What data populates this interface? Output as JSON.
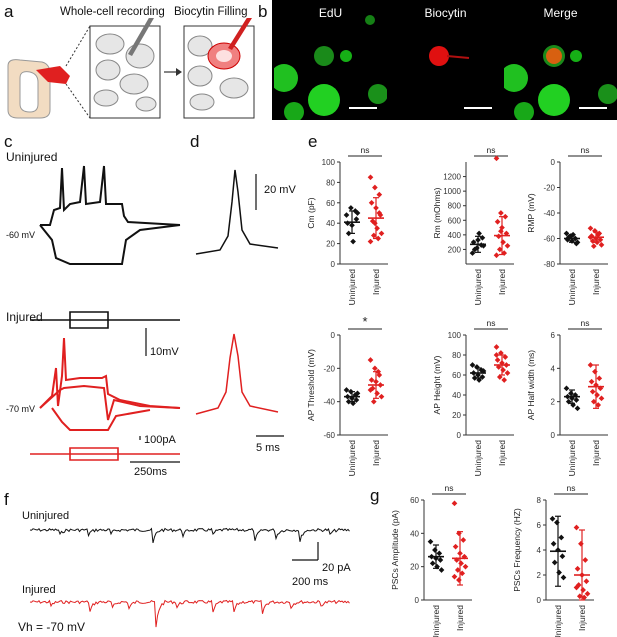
{
  "panels": {
    "a": {
      "label": "a",
      "step1": "Whole-cell recording",
      "step2": "Biocytin Filling"
    },
    "b": {
      "label": "b",
      "channels": [
        "EdU",
        "Biocytin",
        "Merge"
      ],
      "colors": {
        "edu": "#18c818",
        "biocytin": "#e01010",
        "merge_core": "#d86010"
      }
    },
    "c": {
      "label": "c",
      "uninjured_title": "Uninjured",
      "uninjured_rmp": "-60 mV",
      "injured_title": "Injured",
      "injured_rmp": "-70 mV",
      "scale_voltage": "10mV",
      "scale_current": "100pA",
      "scale_time": "250ms"
    },
    "d": {
      "label": "d",
      "scale_voltage": "20 mV",
      "scale_time": "5 ms"
    },
    "e": {
      "label": "e",
      "groups": [
        "Uninjured",
        "Injured"
      ]
    },
    "f": {
      "label": "f",
      "uninjured_title": "Uninjured",
      "injured_title": "Injured",
      "holding": "Vh = -70 mV",
      "scale_current": "20 pA",
      "scale_time": "200 ms"
    },
    "g": {
      "label": "g"
    }
  },
  "colors": {
    "uninjured": "#111111",
    "injured": "#e02020"
  },
  "chart_data": [
    {
      "type": "scatter",
      "panel": "e",
      "ylabel": "Cm (pF)",
      "ylim": [
        0,
        100
      ],
      "yticks": [
        0,
        20,
        40,
        60,
        80,
        100
      ],
      "categories": [
        "Uninjured",
        "Injured"
      ],
      "significance": "ns",
      "series": [
        {
          "name": "Uninjured",
          "values": [
            48,
            55,
            52,
            40,
            38,
            44,
            30,
            22,
            50
          ],
          "mean": 41,
          "sd": 11
        },
        {
          "name": "Injured",
          "values": [
            85,
            75,
            68,
            60,
            55,
            48,
            42,
            35,
            30,
            28,
            25,
            22,
            40,
            50
          ],
          "mean": 45,
          "sd": 20
        }
      ]
    },
    {
      "type": "scatter",
      "panel": "e",
      "ylabel": "Rm (mOhms)",
      "ylim": [
        0,
        1400
      ],
      "yticks": [
        200,
        400,
        600,
        800,
        1000,
        1200
      ],
      "categories": [
        "Uninjured",
        "Injured"
      ],
      "significance": "ns",
      "series": [
        {
          "name": "Uninjured",
          "values": [
            150,
            220,
            260,
            300,
            330,
            360,
            200,
            420,
            250
          ],
          "mean": 270,
          "sd": 110
        },
        {
          "name": "Injured",
          "values": [
            1450,
            700,
            650,
            580,
            500,
            420,
            380,
            300,
            250,
            200,
            150,
            120,
            450
          ],
          "mean": 390,
          "sd": 260
        }
      ]
    },
    {
      "type": "scatter",
      "panel": "e",
      "ylabel": "RMP (mV)",
      "ylim": [
        -80,
        0
      ],
      "yticks": [
        -80,
        -60,
        -40,
        -20,
        0
      ],
      "categories": [
        "Uninjured",
        "Injured"
      ],
      "significance": "ns",
      "series": [
        {
          "name": "Uninjured",
          "values": [
            -56,
            -58,
            -60,
            -61,
            -62,
            -64,
            -59,
            -57,
            -63
          ],
          "mean": -60,
          "sd": 3
        },
        {
          "name": "Injured",
          "values": [
            -52,
            -54,
            -56,
            -58,
            -60,
            -61,
            -62,
            -63,
            -65,
            -66,
            -57,
            -59
          ],
          "mean": -59,
          "sd": 4
        }
      ]
    },
    {
      "type": "scatter",
      "panel": "e",
      "ylabel": "AP Threshold (mV)",
      "ylim": [
        -60,
        0
      ],
      "yticks": [
        -60,
        -40,
        -20,
        0
      ],
      "categories": [
        "Uninjured",
        "Injured"
      ],
      "significance": "*",
      "series": [
        {
          "name": "Uninjured",
          "values": [
            -33,
            -34,
            -36,
            -37,
            -38,
            -39,
            -40,
            -41,
            -35
          ],
          "mean": -37,
          "sd": 3
        },
        {
          "name": "Injured",
          "values": [
            -15,
            -20,
            -24,
            -27,
            -28,
            -30,
            -32,
            -35,
            -37,
            -40,
            -22,
            -33
          ],
          "mean": -30,
          "sd": 8
        }
      ]
    },
    {
      "type": "scatter",
      "panel": "e",
      "ylabel": "AP Height (mV)",
      "ylim": [
        0,
        100
      ],
      "yticks": [
        0,
        20,
        40,
        60,
        80,
        100
      ],
      "categories": [
        "Uninjured",
        "Injured"
      ],
      "significance": "ns",
      "series": [
        {
          "name": "Uninjured",
          "values": [
            70,
            68,
            65,
            62,
            60,
            58,
            57,
            55,
            64
          ],
          "mean": 62,
          "sd": 5
        },
        {
          "name": "Injured",
          "values": [
            88,
            82,
            78,
            75,
            72,
            70,
            68,
            65,
            62,
            58,
            55,
            80
          ],
          "mean": 70,
          "sd": 10
        }
      ]
    },
    {
      "type": "scatter",
      "panel": "e",
      "ylabel": "AP Half width (ms)",
      "ylim": [
        0,
        6
      ],
      "yticks": [
        0,
        2,
        4,
        6
      ],
      "categories": [
        "Uninjured",
        "Injured"
      ],
      "significance": "ns",
      "series": [
        {
          "name": "Uninjured",
          "values": [
            2.8,
            2.5,
            2.4,
            2.3,
            2.2,
            2.1,
            2.0,
            1.8,
            1.6
          ],
          "mean": 2.3,
          "sd": 0.4
        },
        {
          "name": "Injured",
          "values": [
            4.2,
            3.8,
            3.4,
            3.2,
            3.0,
            2.8,
            2.6,
            2.4,
            2.2,
            2.0,
            1.8
          ],
          "mean": 2.9,
          "sd": 1.3
        }
      ]
    },
    {
      "type": "scatter",
      "panel": "g",
      "ylabel": "PSCs Amplitude (pA)",
      "ylim": [
        0,
        60
      ],
      "yticks": [
        0,
        20,
        40,
        60
      ],
      "categories": [
        "Uninjured",
        "Injured"
      ],
      "significance": "ns",
      "series": [
        {
          "name": "Uninjured",
          "values": [
            35,
            30,
            28,
            26,
            25,
            24,
            22,
            20,
            18
          ],
          "mean": 26,
          "sd": 7
        },
        {
          "name": "Injured",
          "values": [
            58,
            40,
            36,
            32,
            28,
            26,
            24,
            22,
            20,
            18,
            16,
            14,
            12
          ],
          "mean": 25,
          "sd": 16
        }
      ]
    },
    {
      "type": "scatter",
      "panel": "g",
      "ylabel": "PSCs Frequency (HZ)",
      "ylim": [
        0,
        8
      ],
      "yticks": [
        0,
        2,
        4,
        6,
        8
      ],
      "categories": [
        "Uninjured",
        "Injured"
      ],
      "significance": "ns",
      "series": [
        {
          "name": "Uninjured",
          "values": [
            6.5,
            6.2,
            5.0,
            4.5,
            4.0,
            3.5,
            3.0,
            2.2,
            1.8
          ],
          "mean": 3.9,
          "sd": 2.8
        },
        {
          "name": "Injured",
          "values": [
            5.8,
            4.5,
            3.2,
            2.5,
            2.0,
            1.5,
            1.2,
            0.8,
            0.5,
            0.3,
            0.2,
            1.0
          ],
          "mean": 2.0,
          "sd": 3.6
        }
      ]
    }
  ]
}
